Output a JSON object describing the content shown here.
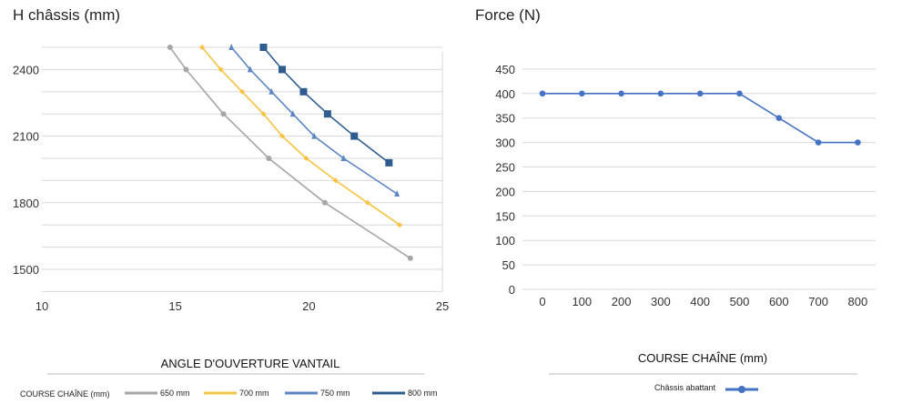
{
  "chart_data": [
    {
      "type": "line",
      "title": "H châssis (mm)",
      "xlabel": "ANGLE D'OUVERTURE VANTAIL",
      "ylabel": "H châssis (mm)",
      "xlim": [
        10,
        25
      ],
      "ylim": [
        1400,
        2560
      ],
      "x_ticks": [
        10,
        15,
        20,
        25
      ],
      "x_tick_labels": [
        "10",
        "15",
        "20",
        "25"
      ],
      "y_ticks": [
        1500,
        1800,
        2100,
        2400
      ],
      "y_tick_labels": [
        "1500",
        "1800",
        "2100",
        "2400"
      ],
      "grid": true,
      "legend_title": "COURSE CHAÎNE (mm)",
      "legend_position": "bottom",
      "series": [
        {
          "name": "650 mm",
          "color": "#a6a6a6",
          "marker": "circle",
          "x": [
            14.8,
            15.4,
            16.8,
            18.5,
            20.6,
            23.8
          ],
          "y": [
            2500,
            2400,
            2200,
            2000,
            1800,
            1550
          ]
        },
        {
          "name": "700 mm",
          "color": "#f6c342",
          "marker": "diamond",
          "x": [
            16.0,
            16.7,
            17.5,
            18.3,
            19.0,
            19.9,
            21.0,
            22.2,
            23.4
          ],
          "y": [
            2500,
            2400,
            2300,
            2200,
            2100,
            2000,
            1900,
            1800,
            1700
          ]
        },
        {
          "name": "750 mm",
          "color": "#5b85c3",
          "marker": "triangle",
          "x": [
            17.1,
            17.8,
            18.6,
            19.4,
            20.2,
            21.3,
            23.3
          ],
          "y": [
            2500,
            2400,
            2300,
            2200,
            2100,
            2000,
            1840
          ]
        },
        {
          "name": "800 mm",
          "color": "#2e5c8f",
          "marker": "square",
          "x": [
            18.3,
            19.0,
            19.8,
            20.7,
            21.7,
            23.0
          ],
          "y": [
            2500,
            2400,
            2300,
            2200,
            2100,
            1980
          ]
        }
      ]
    },
    {
      "type": "line",
      "title": "Force (N)",
      "xlabel": "COURSE CHAÎNE (mm)",
      "ylabel": "Force (N)",
      "categories": [
        "0",
        "100",
        "200",
        "300",
        "400",
        "500",
        "600",
        "700",
        "800"
      ],
      "ylim": [
        0,
        450
      ],
      "y_ticks": [
        0,
        50,
        100,
        150,
        200,
        250,
        300,
        350,
        400,
        450
      ],
      "y_tick_labels": [
        "0",
        "50",
        "100",
        "150",
        "200",
        "250",
        "300",
        "350",
        "400",
        "450"
      ],
      "grid": true,
      "legend_position": "bottom",
      "series": [
        {
          "name": "Châssis abattant",
          "color": "#4472c4",
          "marker": "circle",
          "values": [
            400,
            400,
            400,
            400,
            400,
            400,
            350,
            300,
            300
          ]
        }
      ]
    }
  ]
}
